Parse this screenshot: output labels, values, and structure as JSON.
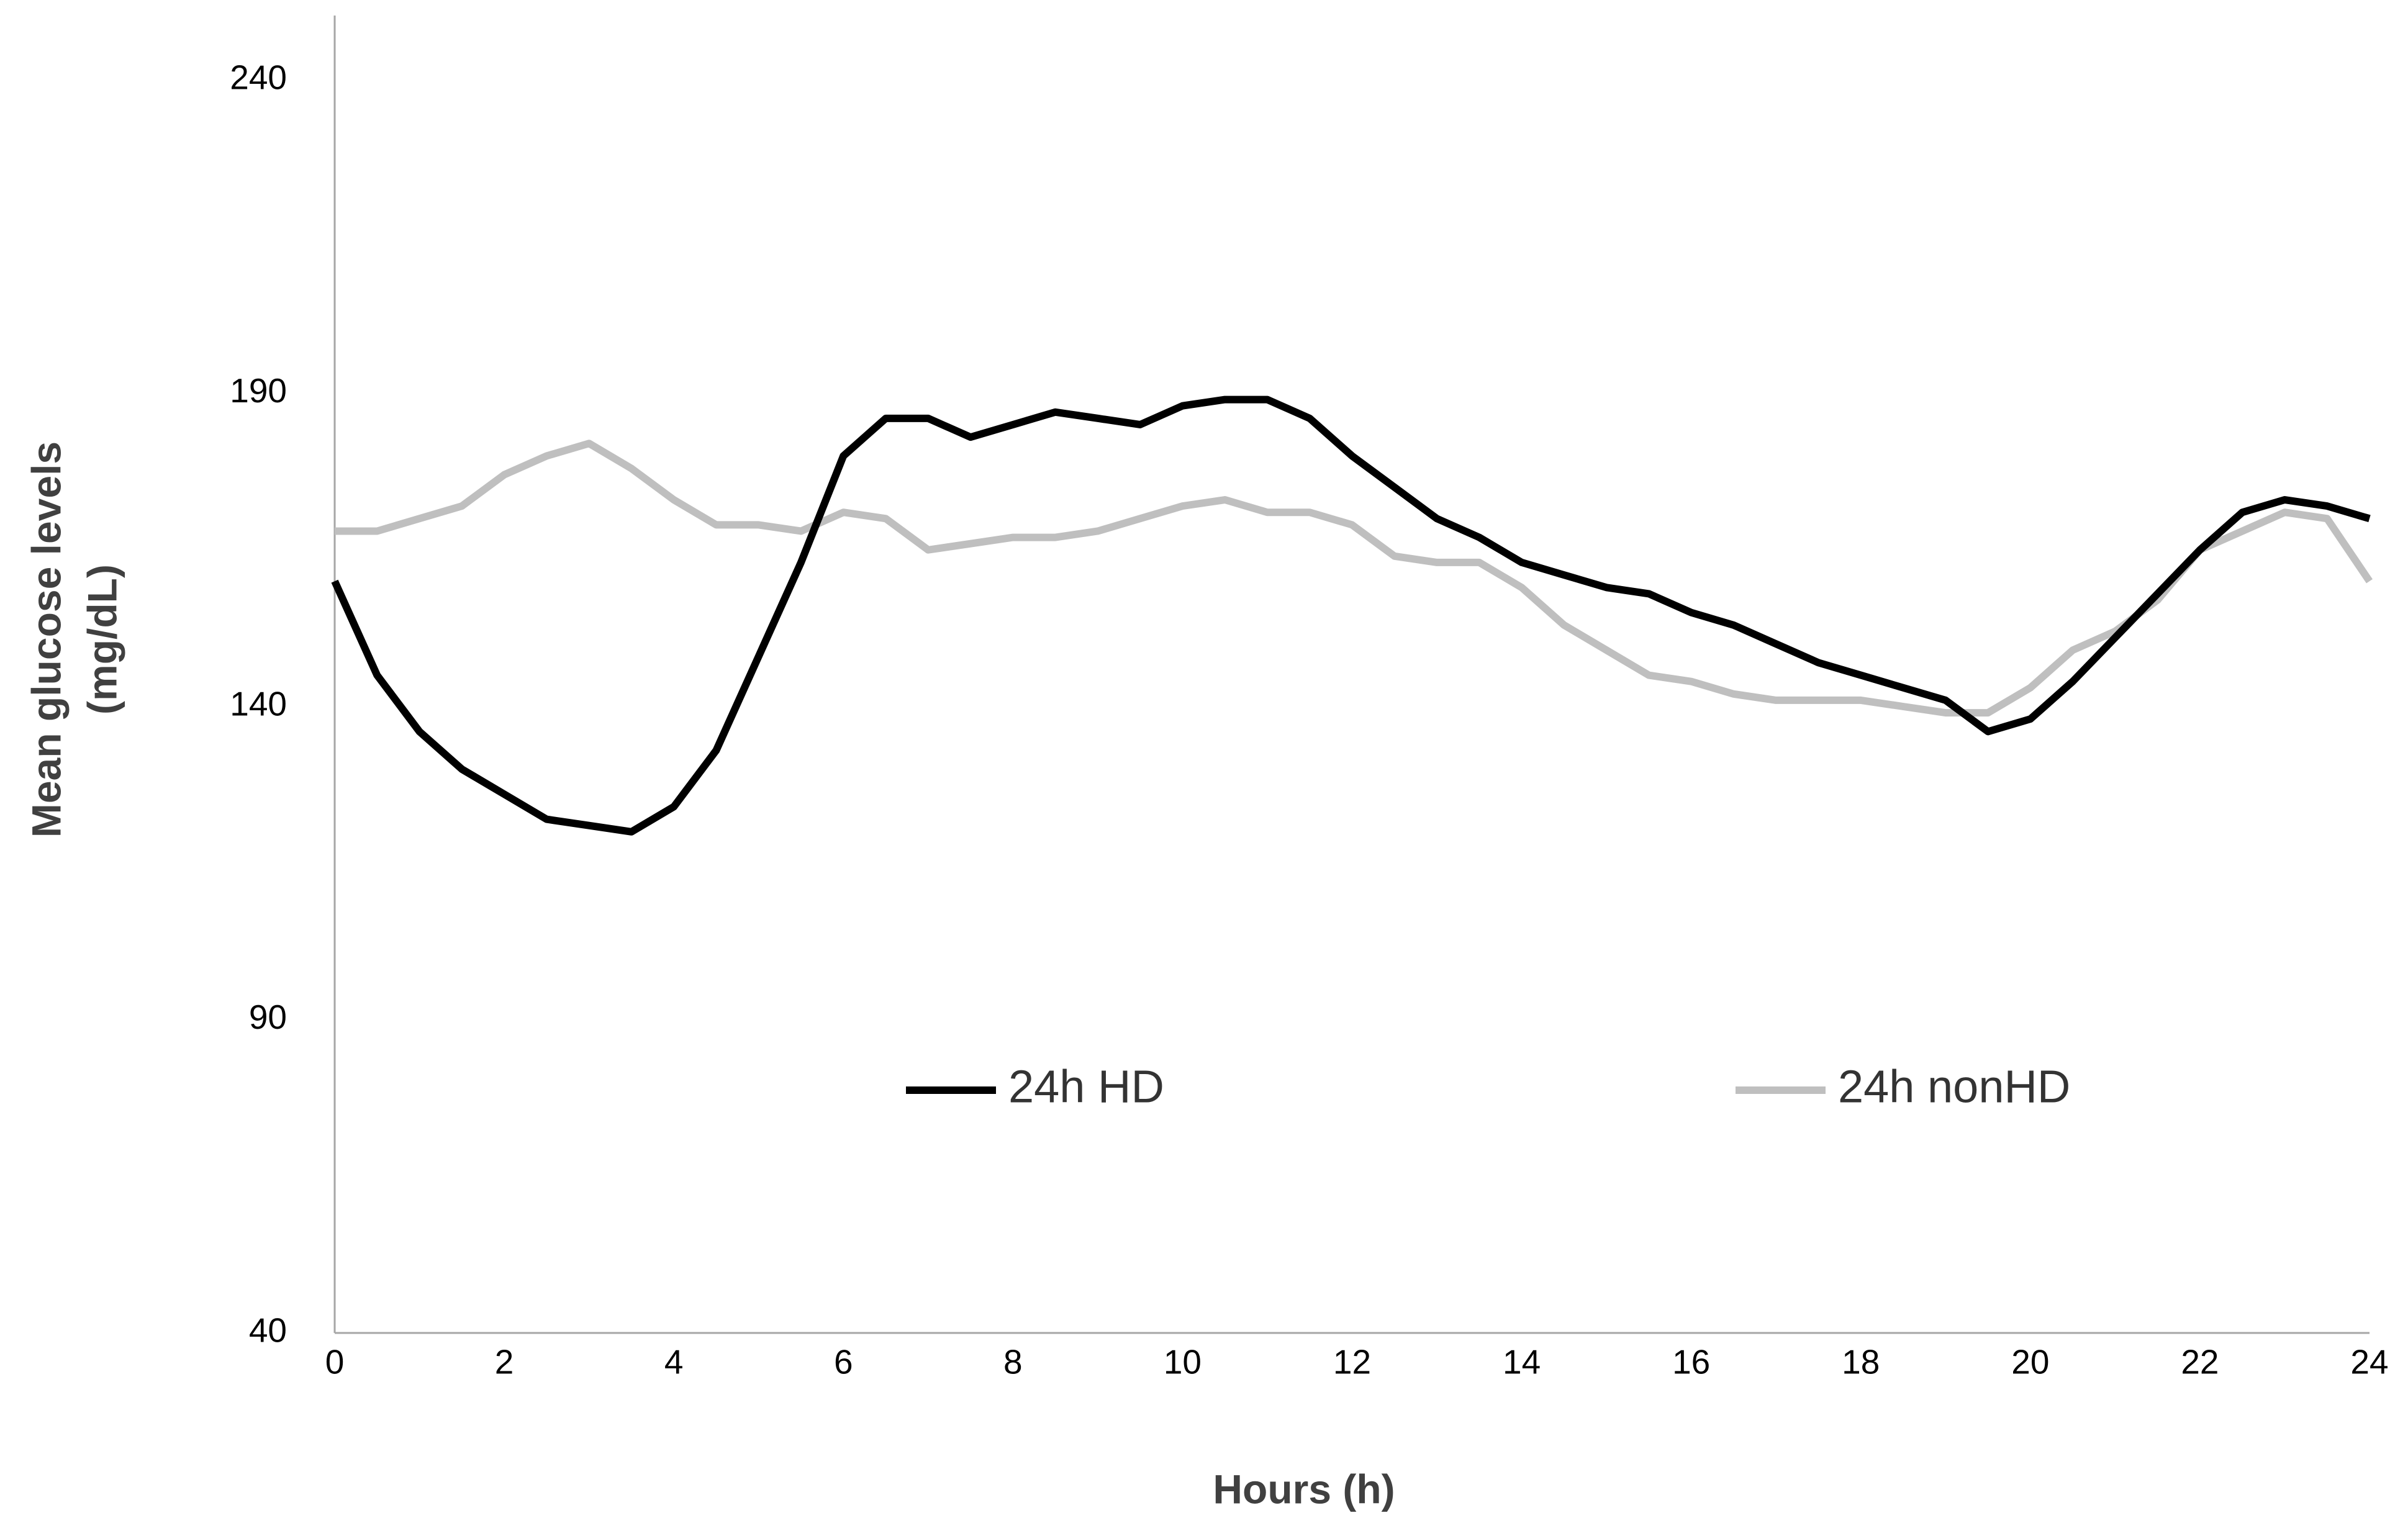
{
  "chart_data": {
    "type": "line",
    "xlabel": "Hours (h)",
    "ylabel": [
      "Mean glucose levels",
      "(mg/dL)"
    ],
    "x": [
      0,
      0.5,
      1,
      1.5,
      2,
      2.5,
      3,
      3.5,
      4,
      4.5,
      5,
      5.5,
      6,
      6.5,
      7,
      7.5,
      8,
      8.5,
      9,
      9.5,
      10,
      10.5,
      11,
      11.5,
      12,
      12.5,
      13,
      13.5,
      14,
      14.5,
      15,
      15.5,
      16,
      16.5,
      17,
      17.5,
      18,
      18.5,
      19,
      19.5,
      20,
      20.5,
      21,
      21.5,
      22,
      22.5,
      23,
      23.5,
      24
    ],
    "series": [
      {
        "name": "24h HD",
        "color": "#000000",
        "values": [
          160,
          145,
          136,
          130,
          126,
          122,
          121,
          120,
          124,
          133,
          148,
          163,
          180,
          186,
          186,
          183,
          185,
          187,
          186,
          185,
          188,
          189,
          189,
          186,
          180,
          175,
          170,
          167,
          163,
          161,
          159,
          158,
          155,
          153,
          150,
          147,
          145,
          143,
          141,
          136,
          138,
          144,
          151,
          158,
          165,
          171,
          173,
          172,
          170
        ]
      },
      {
        "name": "24h nonHD",
        "color": "#bfbfbf",
        "values": [
          168,
          168,
          170,
          172,
          177,
          180,
          182,
          178,
          173,
          169,
          169,
          168,
          171,
          170,
          165,
          166,
          167,
          167,
          168,
          170,
          172,
          173,
          171,
          171,
          169,
          164,
          163,
          163,
          159,
          153,
          149,
          145,
          144,
          142,
          141,
          141,
          141,
          140,
          139,
          139,
          143,
          149,
          152,
          157,
          165,
          168,
          171,
          170,
          160
        ]
      }
    ],
    "xlim": [
      0,
      24
    ],
    "xticks": [
      0,
      2,
      4,
      6,
      8,
      10,
      12,
      14,
      16,
      18,
      20,
      22,
      24
    ],
    "ylim": [
      40,
      240
    ],
    "yticks": [
      40,
      90,
      140,
      190,
      240
    ],
    "grid": false,
    "legend": "bottom"
  }
}
